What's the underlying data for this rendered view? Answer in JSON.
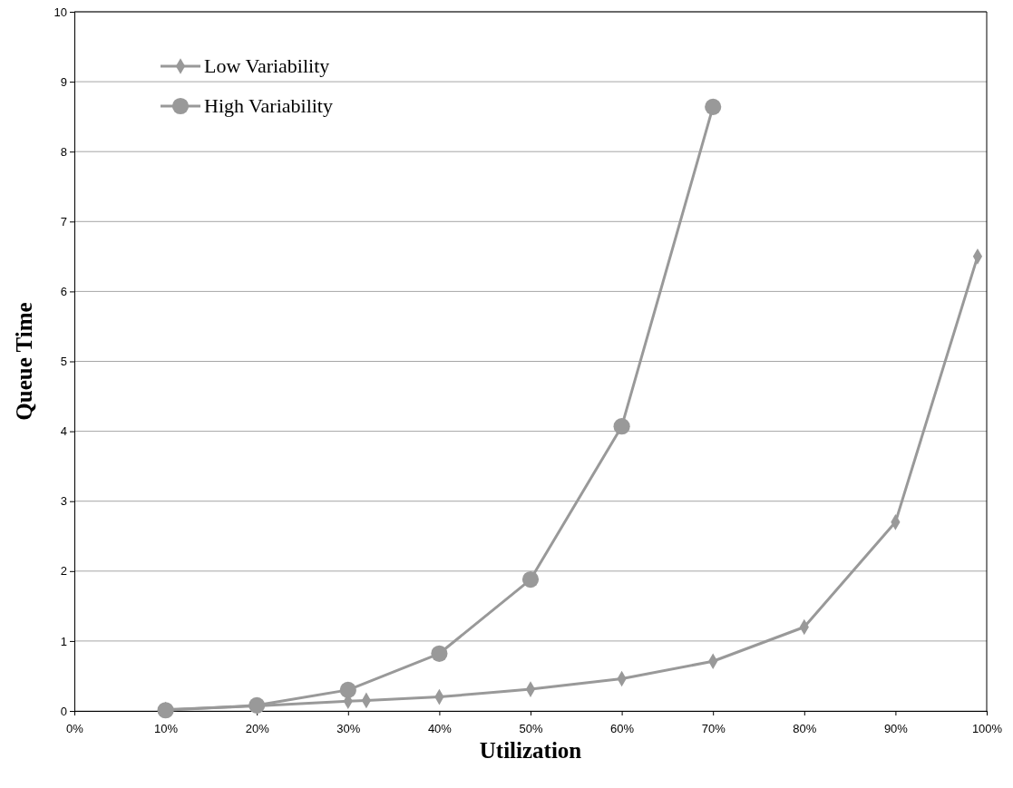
{
  "chart_data": {
    "type": "line",
    "xlabel": "Utilization",
    "ylabel": "Queue Time",
    "xlim": [
      0,
      100
    ],
    "xticks": [
      {
        "value": 0,
        "label": "0%"
      },
      {
        "value": 10,
        "label": "10%"
      },
      {
        "value": 20,
        "label": "20%"
      },
      {
        "value": 30,
        "label": "30%"
      },
      {
        "value": 40,
        "label": "40%"
      },
      {
        "value": 50,
        "label": "50%"
      },
      {
        "value": 60,
        "label": "60%"
      },
      {
        "value": 70,
        "label": "70%"
      },
      {
        "value": 80,
        "label": "80%"
      },
      {
        "value": 90,
        "label": "90%"
      },
      {
        "value": 100,
        "label": "100%"
      }
    ],
    "ylim": [
      0,
      10
    ],
    "yticks": [
      0,
      1,
      2,
      3,
      4,
      5,
      6,
      7,
      8,
      9,
      10
    ],
    "grid": "y",
    "legend": "top left",
    "series": [
      {
        "name": "Low Variability",
        "color": "#999999",
        "marker": "diamond",
        "x": [
          10,
          20,
          30,
          32,
          40,
          50,
          60,
          70,
          80,
          90,
          99
        ],
        "values": [
          0.02,
          0.07,
          0.14,
          0.15,
          0.2,
          0.31,
          0.46,
          0.71,
          1.2,
          2.7,
          6.5
        ]
      },
      {
        "name": "High Variability",
        "color": "#999999",
        "marker": "circle",
        "x": [
          10,
          20,
          30,
          40,
          50,
          60,
          70
        ],
        "values": [
          0.01,
          0.08,
          0.3,
          0.82,
          1.88,
          4.07,
          8.64
        ]
      }
    ]
  }
}
